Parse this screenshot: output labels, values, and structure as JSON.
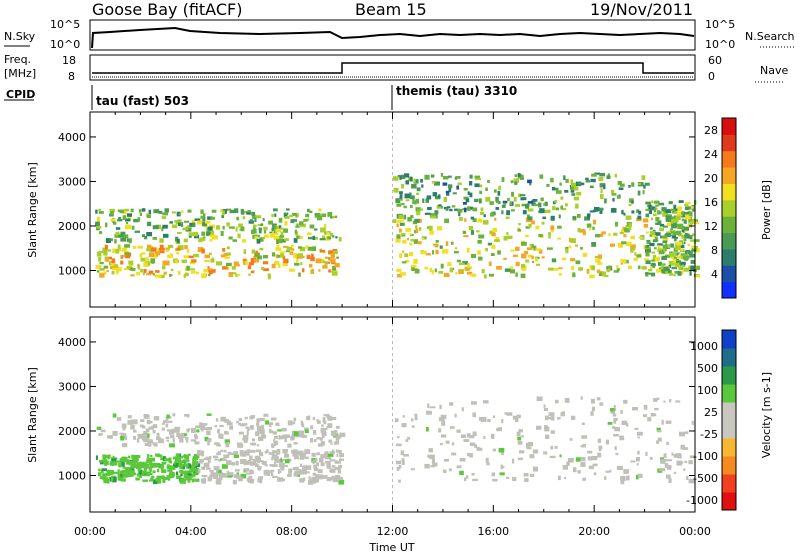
{
  "header": {
    "station": "Goose Bay (fitACF)",
    "beam": "Beam 15",
    "date": "19/Nov/2011"
  },
  "strip_labels": {
    "nsky": "N.Sky",
    "nsky_ticks": [
      "10^5",
      "10^0"
    ],
    "nsearch": "N.Search",
    "nsearch_ticks": [
      "10^5",
      "10^0"
    ],
    "freq_top": "Freq.",
    "freq_unit": "[MHz]",
    "freq_ticks": [
      "18",
      "8"
    ],
    "nave": "Nave",
    "nave_ticks": [
      "60",
      "0"
    ],
    "cpid": "CPID"
  },
  "cpid_modes": [
    {
      "name": "tau (fast) 503",
      "start": "00:00"
    },
    {
      "name": "themis (tau) 3310",
      "start": "12:00"
    }
  ],
  "colors": {
    "power_scale": [
      "#1030ff",
      "#1e4fa8",
      "#2c7d6a",
      "#4a9a56",
      "#6ab33a",
      "#a8cf2a",
      "#f2e020",
      "#f5a623",
      "#f57a1c",
      "#e0391c",
      "#d80f0f"
    ],
    "velocity_scale": [
      "#e01010",
      "#f04020",
      "#f58a20",
      "#f5b830",
      "#c8c8c0",
      "#c8c8c0",
      "#5ac83a",
      "#2a9a4a",
      "#1e6e8a",
      "#1040c8"
    ],
    "ground_scatter": "#c0c0b8"
  },
  "chart_data": [
    {
      "type": "heatmap",
      "name": "power",
      "xlabel": "",
      "ylabel": "Slant Range [km]",
      "x_ticks": [
        "00:00",
        "04:00",
        "08:00",
        "12:00",
        "16:00",
        "20:00",
        "00:00"
      ],
      "xlim": [
        0,
        24
      ],
      "y_ticks": [
        1000,
        2000,
        3000,
        4000
      ],
      "ylim": [
        180,
        4560
      ],
      "colorbar_label": "Power [dB]",
      "colorbar_ticks": [
        4,
        8,
        12,
        16,
        20,
        24,
        28
      ],
      "colorbar_range": [
        0,
        30
      ],
      "bands": [
        {
          "t0": 0.2,
          "t1": 9.9,
          "r0": 900,
          "r1": 1600,
          "level": 18
        },
        {
          "t0": 0.2,
          "t1": 9.9,
          "r0": 1700,
          "r1": 2400,
          "level": 12
        },
        {
          "t0": 12.0,
          "t1": 22.0,
          "r0": 900,
          "r1": 2200,
          "level": 16
        },
        {
          "t0": 12.0,
          "t1": 22.0,
          "r0": 2200,
          "r1": 3200,
          "level": 10
        },
        {
          "t0": 22.0,
          "t1": 24.0,
          "r0": 900,
          "r1": 2600,
          "level": 12
        }
      ]
    },
    {
      "type": "heatmap",
      "name": "velocity",
      "xlabel": "Time UT",
      "ylabel": "Slant Range [km]",
      "x_ticks": [
        "00:00",
        "04:00",
        "08:00",
        "12:00",
        "16:00",
        "20:00",
        "00:00"
      ],
      "xlim": [
        0,
        24
      ],
      "y_ticks": [
        1000,
        2000,
        3000,
        4000
      ],
      "ylim": [
        180,
        4560
      ],
      "colorbar_label": "Velocity [m s-1]",
      "colorbar_ticks": [
        "1000",
        "500",
        "100",
        "25",
        "-25",
        "-100",
        "-500",
        "-1000"
      ],
      "bands": [
        {
          "t0": 0.2,
          "t1": 4.2,
          "r0": 900,
          "r1": 1500,
          "velocity": 100
        },
        {
          "t0": 0.2,
          "t1": 9.9,
          "r0": 1700,
          "r1": 2400,
          "velocity": 0
        },
        {
          "t0": 4.2,
          "t1": 9.9,
          "r0": 900,
          "r1": 1600,
          "velocity": 0
        },
        {
          "t0": 12.0,
          "t1": 24.0,
          "r0": 900,
          "r1": 2800,
          "velocity": 0
        }
      ]
    }
  ]
}
